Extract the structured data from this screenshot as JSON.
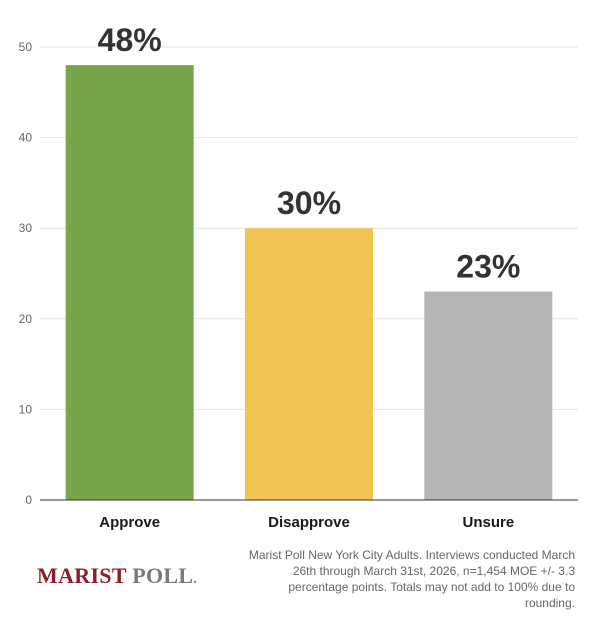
{
  "chart_data": {
    "type": "bar",
    "categories": [
      "Approve",
      "Disapprove",
      "Unsure"
    ],
    "values": [
      48,
      30,
      23
    ],
    "data_labels": [
      "48%",
      "30%",
      "23%"
    ],
    "colors": [
      "#77a64a",
      "#f2c453",
      "#b5b5b5"
    ],
    "yticks": [
      0,
      10,
      20,
      30,
      40,
      50
    ],
    "ylim": [
      0,
      50
    ],
    "grid": true
  },
  "footer": {
    "logo_primary": "MARIST",
    "logo_secondary": "POLL",
    "logo_mark": ".",
    "note": "Marist Poll New York City Adults. Interviews conducted March 26th through March 31st, 2026, n=1,454 MOE +/- 3.3 percentage points. Totals may not add to 100% due to rounding."
  }
}
